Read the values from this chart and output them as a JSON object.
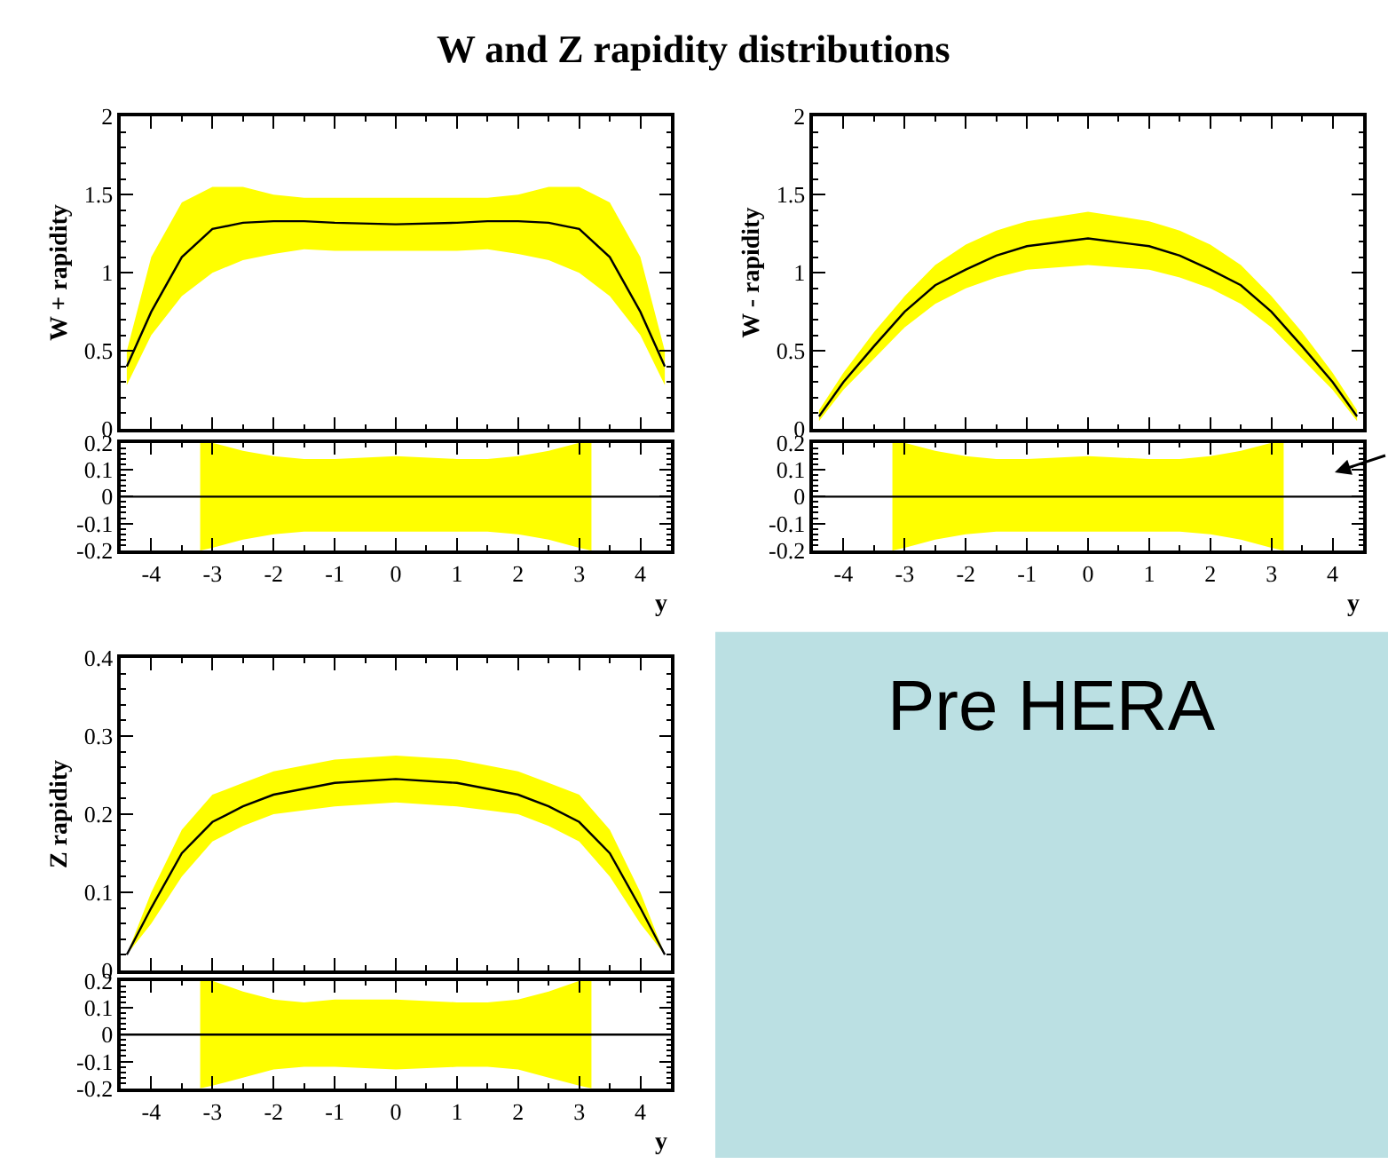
{
  "chart_data": [
    {
      "type": "line",
      "title": "W and Z rapidity distributions",
      "ylabel": "W + rapidity",
      "xlim": [
        -4.5,
        4.5
      ],
      "xticks": [
        -4,
        -3,
        -2,
        -1,
        0,
        1,
        2,
        3,
        4
      ],
      "ylim": [
        0,
        2
      ],
      "yticks": [
        0,
        0.5,
        1,
        1.5,
        2
      ],
      "tick_labels": "y",
      "series": [
        {
          "color": "#000000",
          "x": [
            -4.4,
            -4,
            -3.5,
            -3,
            -2.5,
            -2,
            -1.5,
            -1,
            0,
            1,
            1.5,
            2,
            2.5,
            3,
            3.5,
            4,
            4.4
          ],
          "values": [
            0.4,
            0.75,
            1.1,
            1.28,
            1.32,
            1.33,
            1.33,
            1.32,
            1.31,
            1.32,
            1.33,
            1.33,
            1.32,
            1.28,
            1.1,
            0.75,
            0.4
          ],
          "lower": [
            0.28,
            0.6,
            0.85,
            1.0,
            1.08,
            1.12,
            1.15,
            1.14,
            1.14,
            1.14,
            1.15,
            1.12,
            1.08,
            1.0,
            0.85,
            0.6,
            0.28
          ],
          "upper": [
            0.5,
            1.1,
            1.45,
            1.55,
            1.55,
            1.5,
            1.48,
            1.48,
            1.48,
            1.48,
            1.48,
            1.5,
            1.55,
            1.55,
            1.45,
            1.1,
            0.5
          ]
        }
      ]
    },
    {
      "type": "line",
      "xlabel": "y",
      "xlim": [
        -4.5,
        4.5
      ],
      "xticks": [
        -4,
        -3,
        -2,
        -1,
        0,
        1,
        2,
        3,
        4
      ],
      "ylim": [
        -0.2,
        0.2
      ],
      "yticks": [
        -0.2,
        -0.1,
        0,
        0.1,
        0.2
      ],
      "series": [
        {
          "color": "#000000",
          "x": [
            -4.5,
            -3.2,
            -3,
            -2.5,
            -2,
            -1.5,
            -1,
            0,
            1,
            1.5,
            2,
            2.5,
            3,
            3.2,
            4.5
          ],
          "values": [
            0,
            0,
            0,
            0,
            0,
            0,
            0,
            0,
            0,
            0,
            0,
            0,
            0,
            0,
            0
          ],
          "lower": [
            null,
            -0.2,
            -0.19,
            -0.16,
            -0.14,
            -0.13,
            -0.13,
            -0.13,
            -0.13,
            -0.13,
            -0.14,
            -0.16,
            -0.19,
            -0.2,
            null
          ],
          "upper": [
            null,
            0.2,
            0.2,
            0.17,
            0.15,
            0.14,
            0.14,
            0.15,
            0.14,
            0.14,
            0.15,
            0.17,
            0.2,
            0.2,
            null
          ]
        }
      ]
    },
    {
      "type": "line",
      "ylabel": "W - rapidity",
      "xlim": [
        -4.5,
        4.5
      ],
      "xticks": [
        -4,
        -3,
        -2,
        -1,
        0,
        1,
        2,
        3,
        4
      ],
      "ylim": [
        0,
        2
      ],
      "yticks": [
        0,
        0.5,
        1,
        1.5,
        2
      ],
      "tick_labels": "y",
      "series": [
        {
          "color": "#000000",
          "x": [
            -4.4,
            -4,
            -3.5,
            -3,
            -2.5,
            -2,
            -1.5,
            -1,
            0,
            1,
            1.5,
            2,
            2.5,
            3,
            3.5,
            4,
            4.4
          ],
          "values": [
            0.08,
            0.3,
            0.53,
            0.75,
            0.92,
            1.02,
            1.11,
            1.17,
            1.22,
            1.17,
            1.11,
            1.02,
            0.92,
            0.75,
            0.53,
            0.3,
            0.08
          ],
          "lower": [
            0.05,
            0.25,
            0.45,
            0.65,
            0.8,
            0.9,
            0.97,
            1.02,
            1.05,
            1.02,
            0.97,
            0.9,
            0.8,
            0.65,
            0.45,
            0.25,
            0.05
          ],
          "upper": [
            0.12,
            0.36,
            0.62,
            0.85,
            1.05,
            1.18,
            1.27,
            1.33,
            1.39,
            1.33,
            1.27,
            1.18,
            1.05,
            0.85,
            0.62,
            0.36,
            0.12
          ]
        }
      ]
    },
    {
      "type": "line",
      "xlabel": "y",
      "xlim": [
        -4.5,
        4.5
      ],
      "xticks": [
        -4,
        -3,
        -2,
        -1,
        0,
        1,
        2,
        3,
        4
      ],
      "ylim": [
        -0.2,
        0.2
      ],
      "yticks": [
        -0.2,
        -0.1,
        0,
        0.1,
        0.2
      ],
      "series": [
        {
          "color": "#000000",
          "x": [
            -4.5,
            -3.2,
            -3,
            -2.5,
            -2,
            -1.5,
            -1,
            0,
            1,
            1.5,
            2,
            2.5,
            3,
            3.2,
            4.5
          ],
          "values": [
            0,
            0,
            0,
            0,
            0,
            0,
            0,
            0,
            0,
            0,
            0,
            0,
            0,
            0,
            0
          ],
          "lower": [
            null,
            -0.2,
            -0.19,
            -0.16,
            -0.14,
            -0.13,
            -0.13,
            -0.13,
            -0.13,
            -0.13,
            -0.14,
            -0.16,
            -0.19,
            -0.2,
            null
          ],
          "upper": [
            null,
            0.2,
            0.2,
            0.17,
            0.15,
            0.14,
            0.14,
            0.15,
            0.14,
            0.14,
            0.15,
            0.17,
            0.2,
            0.2,
            null
          ]
        }
      ]
    },
    {
      "type": "line",
      "ylabel": "Z rapidity",
      "xlim": [
        -4.5,
        4.5
      ],
      "xticks": [
        -4,
        -3,
        -2,
        -1,
        0,
        1,
        2,
        3,
        4
      ],
      "ylim": [
        0,
        0.4
      ],
      "yticks": [
        0,
        0.1,
        0.2,
        0.3,
        0.4
      ],
      "tick_labels": "y",
      "series": [
        {
          "color": "#000000",
          "x": [
            -4.4,
            -4,
            -3.5,
            -3,
            -2.5,
            -2,
            -1,
            0,
            1,
            2,
            2.5,
            3,
            3.5,
            4,
            4.4
          ],
          "values": [
            0.02,
            0.08,
            0.15,
            0.19,
            0.21,
            0.225,
            0.24,
            0.245,
            0.24,
            0.225,
            0.21,
            0.19,
            0.15,
            0.08,
            0.02
          ],
          "lower": [
            0.02,
            0.06,
            0.12,
            0.165,
            0.185,
            0.2,
            0.21,
            0.215,
            0.21,
            0.2,
            0.185,
            0.165,
            0.12,
            0.06,
            0.02
          ],
          "upper": [
            0.02,
            0.1,
            0.18,
            0.225,
            0.24,
            0.255,
            0.27,
            0.275,
            0.27,
            0.255,
            0.24,
            0.225,
            0.18,
            0.1,
            0.02
          ]
        }
      ]
    },
    {
      "type": "line",
      "xlabel": "y",
      "xlim": [
        -4.5,
        4.5
      ],
      "xticks": [
        -4,
        -3,
        -2,
        -1,
        0,
        1,
        2,
        3,
        4
      ],
      "ylim": [
        -0.2,
        0.2
      ],
      "yticks": [
        -0.2,
        -0.1,
        0,
        0.1,
        0.2
      ],
      "series": [
        {
          "color": "#000000",
          "x": [
            -4.5,
            -3.2,
            -3,
            -2.5,
            -2,
            -1.5,
            -1,
            0,
            1,
            1.5,
            2,
            2.5,
            3,
            3.2,
            4.5
          ],
          "values": [
            0,
            0,
            0,
            0,
            0,
            0,
            0,
            0,
            0,
            0,
            0,
            0,
            0,
            0,
            0
          ],
          "lower": [
            null,
            -0.2,
            -0.19,
            -0.16,
            -0.13,
            -0.12,
            -0.12,
            -0.13,
            -0.12,
            -0.12,
            -0.13,
            -0.16,
            -0.19,
            -0.2,
            null
          ],
          "upper": [
            null,
            0.2,
            0.2,
            0.16,
            0.13,
            0.12,
            0.13,
            0.13,
            0.12,
            0.12,
            0.13,
            0.16,
            0.2,
            0.2,
            null
          ]
        }
      ]
    },
    {
      "type": "other",
      "annotations": [
        "Pre HERA"
      ]
    }
  ]
}
